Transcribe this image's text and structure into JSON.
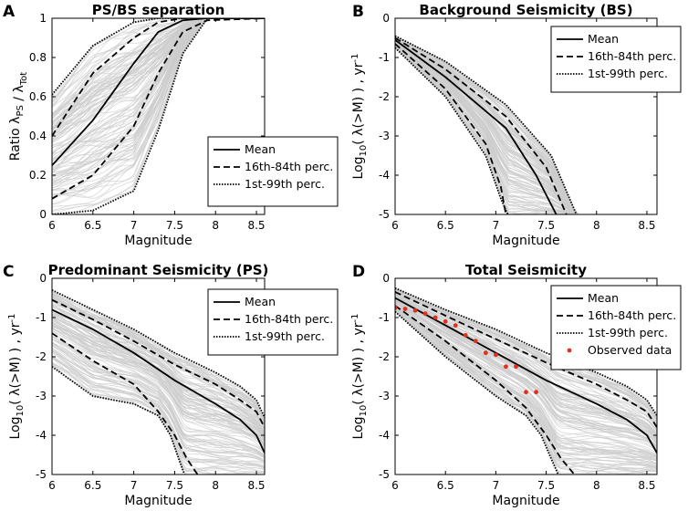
{
  "colors": {
    "band": "#cccccc",
    "line": "#000000",
    "observed": "#e0301e"
  },
  "chart_data": [
    {
      "type": "line",
      "panel_label": "A",
      "title": "PS/BS separation",
      "xlabel": "Magnitude",
      "ylabel": "Ratio λPS / λTot",
      "xlim": [
        6,
        8.6
      ],
      "ylim": [
        0,
        1
      ],
      "xticks": [
        "6",
        "6.5",
        "7",
        "7.5",
        "8",
        "8.5"
      ],
      "yticks": [
        "0",
        "0.2",
        "0.4",
        "0.6",
        "0.8",
        "1"
      ],
      "legend": [
        "Mean",
        "16th-84th perc.",
        "1st-99th perc."
      ],
      "series": [
        {
          "name": "Mean",
          "style": "solid",
          "x": [
            6,
            6.5,
            7,
            7.3,
            7.6,
            7.9,
            8.6
          ],
          "y": [
            0.25,
            0.48,
            0.77,
            0.93,
            0.99,
            1,
            1
          ]
        },
        {
          "name": "16th perc.",
          "style": "dashed",
          "x": [
            6,
            6.5,
            7,
            7.3,
            7.6,
            7.9,
            8.6
          ],
          "y": [
            0.08,
            0.2,
            0.45,
            0.72,
            0.93,
            0.99,
            1
          ]
        },
        {
          "name": "84th perc.",
          "style": "dashed",
          "x": [
            6,
            6.5,
            7,
            7.3,
            7.6,
            7.9,
            8.6
          ],
          "y": [
            0.4,
            0.72,
            0.9,
            0.98,
            1,
            1,
            1
          ]
        },
        {
          "name": "1st perc.",
          "style": "dotted",
          "x": [
            6,
            6.5,
            7,
            7.3,
            7.6,
            7.9,
            8.6
          ],
          "y": [
            0,
            0.02,
            0.12,
            0.43,
            0.82,
            1,
            1
          ]
        },
        {
          "name": "99th perc.",
          "style": "dotted",
          "x": [
            6,
            6.5,
            7,
            7.3,
            7.6,
            7.9,
            8.6
          ],
          "y": [
            0.61,
            0.86,
            0.98,
            1,
            1,
            1,
            1
          ]
        }
      ]
    },
    {
      "type": "line",
      "panel_label": "B",
      "title": "Background Seismicity (BS)",
      "xlabel": "Magnitude",
      "ylabel": "Log10( λ(>M) ) , yr-1",
      "xlim": [
        6,
        8.6
      ],
      "ylim": [
        -5,
        0
      ],
      "xticks": [
        "6",
        "6.5",
        "7",
        "7.5",
        "8",
        "8.5"
      ],
      "yticks": [
        "-5",
        "-4",
        "-3",
        "-2",
        "-1",
        "0"
      ],
      "legend": [
        "Mean",
        "16th-84th perc.",
        "1st-99th perc."
      ],
      "series": [
        {
          "name": "Mean",
          "style": "solid",
          "x": [
            6,
            6.5,
            7.1,
            7.4,
            7.6
          ],
          "y": [
            -0.55,
            -1.5,
            -2.8,
            -4.0,
            -5.0
          ]
        },
        {
          "name": "16th perc.",
          "style": "dashed",
          "x": [
            6,
            6.5,
            6.9,
            7.05,
            7.1
          ],
          "y": [
            -0.65,
            -1.8,
            -3.2,
            -4.3,
            -5.0
          ]
        },
        {
          "name": "84th perc.",
          "style": "dashed",
          "x": [
            6,
            6.5,
            7.1,
            7.5,
            7.7
          ],
          "y": [
            -0.5,
            -1.3,
            -2.5,
            -3.8,
            -5.0
          ]
        },
        {
          "name": "1st perc.",
          "style": "dotted",
          "x": [
            6,
            6.5,
            6.9,
            7.05,
            7.12
          ],
          "y": [
            -0.75,
            -2.0,
            -3.5,
            -4.6,
            -5.0
          ]
        },
        {
          "name": "99th perc.",
          "style": "dotted",
          "x": [
            6,
            6.5,
            7.1,
            7.55,
            7.8
          ],
          "y": [
            -0.45,
            -1.1,
            -2.2,
            -3.5,
            -5.0
          ]
        }
      ]
    },
    {
      "type": "line",
      "panel_label": "C",
      "title": "Predominant Seismicity (PS)",
      "xlabel": "Magnitude",
      "ylabel": "Log10( λ(>M) ) , yr-1",
      "xlim": [
        6,
        8.6
      ],
      "ylim": [
        -5,
        0
      ],
      "xticks": [
        "6",
        "6.5",
        "7",
        "7.5",
        "8",
        "8.5"
      ],
      "yticks": [
        "-5",
        "-4",
        "-3",
        "-2",
        "-1",
        "0"
      ],
      "legend": [
        "Mean",
        "16th-84th perc.",
        "1st-99th perc."
      ],
      "series": [
        {
          "name": "Mean",
          "style": "solid",
          "x": [
            6,
            6.5,
            7,
            7.5,
            8,
            8.3,
            8.5,
            8.6
          ],
          "y": [
            -0.8,
            -1.3,
            -1.9,
            -2.6,
            -3.2,
            -3.6,
            -4.0,
            -4.45
          ]
        },
        {
          "name": "16th perc.",
          "style": "dashed",
          "x": [
            6,
            6.5,
            7,
            7.3,
            7.5,
            7.65,
            7.78
          ],
          "y": [
            -1.4,
            -2.1,
            -2.7,
            -3.4,
            -4.0,
            -4.6,
            -5.0
          ]
        },
        {
          "name": "84th perc.",
          "style": "dashed",
          "x": [
            6,
            6.5,
            7,
            7.5,
            8,
            8.3,
            8.5,
            8.6
          ],
          "y": [
            -0.55,
            -1.05,
            -1.6,
            -2.2,
            -2.7,
            -3.1,
            -3.4,
            -3.8
          ]
        },
        {
          "name": "1st perc.",
          "style": "dotted",
          "x": [
            6,
            6.5,
            7,
            7.3,
            7.45,
            7.55,
            7.62
          ],
          "y": [
            -2.25,
            -3.0,
            -3.2,
            -3.5,
            -4.0,
            -4.6,
            -5.0
          ]
        },
        {
          "name": "99th perc.",
          "style": "dotted",
          "x": [
            6,
            6.5,
            7,
            7.5,
            8,
            8.3,
            8.5,
            8.6
          ],
          "y": [
            -0.3,
            -0.8,
            -1.3,
            -1.9,
            -2.4,
            -2.75,
            -3.1,
            -3.55
          ]
        }
      ]
    },
    {
      "type": "line",
      "panel_label": "D",
      "title": "Total Seismicity",
      "xlabel": "Magnitude",
      "ylabel": "Log10( λ(>M) ) , yr-1",
      "xlim": [
        6,
        8.6
      ],
      "ylim": [
        -5,
        0
      ],
      "xticks": [
        "6",
        "6.5",
        "7",
        "7.5",
        "8",
        "8.5"
      ],
      "yticks": [
        "-5",
        "-4",
        "-3",
        "-2",
        "-1",
        "0"
      ],
      "legend": [
        "Mean",
        "16th-84th perc.",
        "1st-99th perc.",
        "Observed data"
      ],
      "series": [
        {
          "name": "Mean",
          "style": "solid",
          "x": [
            6,
            6.5,
            7,
            7.5,
            8,
            8.3,
            8.5,
            8.6
          ],
          "y": [
            -0.5,
            -1.2,
            -1.9,
            -2.6,
            -3.2,
            -3.6,
            -4.0,
            -4.45
          ]
        },
        {
          "name": "16th perc.",
          "style": "dashed",
          "x": [
            6,
            6.5,
            7,
            7.3,
            7.5,
            7.65,
            7.78
          ],
          "y": [
            -0.7,
            -1.6,
            -2.6,
            -3.3,
            -4.0,
            -4.6,
            -5.0
          ]
        },
        {
          "name": "84th perc.",
          "style": "dashed",
          "x": [
            6,
            6.5,
            7,
            7.5,
            8,
            8.3,
            8.5,
            8.6
          ],
          "y": [
            -0.35,
            -0.95,
            -1.55,
            -2.15,
            -2.7,
            -3.1,
            -3.4,
            -3.8
          ]
        },
        {
          "name": "1st perc.",
          "style": "dotted",
          "x": [
            6,
            6.5,
            7,
            7.3,
            7.45,
            7.55,
            7.62
          ],
          "y": [
            -0.85,
            -2.0,
            -3.0,
            -3.5,
            -4.0,
            -4.6,
            -5.0
          ]
        },
        {
          "name": "99th perc.",
          "style": "dotted",
          "x": [
            6,
            6.5,
            7,
            7.5,
            8,
            8.3,
            8.5,
            8.6
          ],
          "y": [
            -0.25,
            -0.8,
            -1.3,
            -1.9,
            -2.4,
            -2.75,
            -3.1,
            -3.5
          ]
        }
      ],
      "observed": {
        "name": "Observed data",
        "x": [
          6.0,
          6.1,
          6.2,
          6.3,
          6.4,
          6.5,
          6.6,
          6.7,
          6.8,
          6.9,
          7.0,
          7.1,
          7.2,
          7.3,
          7.4
        ],
        "y": [
          -0.75,
          -0.78,
          -0.82,
          -0.9,
          -1.0,
          -1.1,
          -1.2,
          -1.45,
          -1.6,
          -1.9,
          -1.95,
          -2.25,
          -2.25,
          -2.9,
          -2.9
        ]
      }
    }
  ]
}
